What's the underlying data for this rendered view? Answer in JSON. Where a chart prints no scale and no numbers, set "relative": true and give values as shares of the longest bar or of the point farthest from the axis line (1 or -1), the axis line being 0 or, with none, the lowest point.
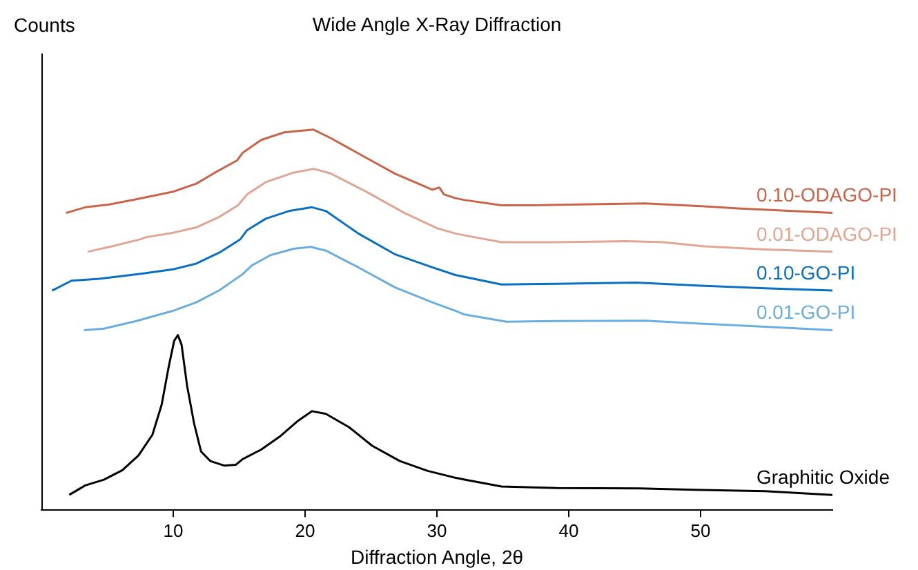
{
  "chart_data": {
    "type": "line",
    "title": "Wide Angle X-Ray Diffraction",
    "xlabel": "Diffraction Angle, 2θ",
    "ylabel": "Counts",
    "relative": true,
    "xlim": [
      0,
      60
    ],
    "xticks": [
      10,
      20,
      30,
      40,
      50
    ],
    "series": [
      {
        "name": "0.10-ODAGO-PI",
        "color": "#c8644a",
        "x": [
          1.86,
          3.33,
          5.09,
          7.19,
          10,
          11.75,
          13.16,
          14.84,
          15.26,
          16.67,
          18.42,
          20.63,
          21.93,
          24.74,
          26.84,
          29.65,
          30.18,
          30.53,
          31.4,
          32.1,
          34.9,
          37.3,
          41.6,
          45.8,
          50,
          52.8,
          60
        ],
        "values": [
          0.781,
          0.796,
          0.803,
          0.817,
          0.837,
          0.858,
          0.887,
          0.919,
          0.939,
          0.973,
          0.993,
          1,
          0.978,
          0.924,
          0.884,
          0.842,
          0.848,
          0.83,
          0.82,
          0.815,
          0.801,
          0.801,
          0.804,
          0.806,
          0.799,
          0.793,
          0.781
        ]
      },
      {
        "name": "0.01-ODAGO-PI",
        "color": "#e0a693",
        "x": [
          3.51,
          5.44,
          7.54,
          7.89,
          10,
          11.75,
          13.51,
          14.91,
          15.61,
          17.02,
          19.12,
          20.63,
          21.93,
          24.74,
          27.54,
          30,
          31.4,
          32.1,
          34.9,
          39.1,
          44.4,
          47.2,
          50,
          54.9,
          60
        ],
        "values": [
          0.679,
          0.694,
          0.712,
          0.717,
          0.729,
          0.743,
          0.771,
          0.801,
          0.83,
          0.862,
          0.887,
          0.897,
          0.885,
          0.835,
          0.781,
          0.741,
          0.727,
          0.722,
          0.704,
          0.704,
          0.707,
          0.704,
          0.694,
          0.685,
          0.679
        ]
      },
      {
        "name": "0.10-GO-PI",
        "color": "#0a6fc2",
        "x": [
          0.81,
          2.28,
          4.39,
          7.54,
          10,
          11.75,
          13.51,
          15.09,
          15.61,
          17.02,
          18.77,
          20.53,
          21.58,
          24.04,
          26.84,
          29.65,
          31.4,
          32.1,
          34.9,
          39.1,
          45.1,
          50,
          54.9,
          60
        ],
        "values": [
          0.577,
          0.603,
          0.608,
          0.621,
          0.633,
          0.648,
          0.677,
          0.712,
          0.736,
          0.766,
          0.786,
          0.796,
          0.786,
          0.727,
          0.672,
          0.638,
          0.618,
          0.613,
          0.593,
          0.595,
          0.598,
          0.59,
          0.583,
          0.577
        ]
      },
      {
        "name": "0.01-GO-PI",
        "color": "#6aaee0",
        "x": [
          3.23,
          4.74,
          7.19,
          10,
          11.75,
          13.51,
          15.26,
          15.96,
          17.37,
          19.12,
          20.42,
          21.58,
          24.04,
          26.84,
          29.65,
          31.4,
          32.1,
          35.3,
          39.1,
          45.8,
          50,
          54.9,
          60
        ],
        "values": [
          0.473,
          0.477,
          0.497,
          0.524,
          0.546,
          0.578,
          0.62,
          0.643,
          0.67,
          0.687,
          0.692,
          0.682,
          0.638,
          0.585,
          0.546,
          0.524,
          0.514,
          0.495,
          0.497,
          0.498,
          0.49,
          0.482,
          0.473
        ]
      },
      {
        "name": "Graphitic Oxide",
        "color": "#000000",
        "x": [
          2.11,
          3.33,
          4.74,
          6.14,
          7.37,
          8.42,
          9.12,
          9.65,
          10.07,
          10.35,
          10.63,
          11.05,
          11.58,
          12.11,
          12.81,
          13.86,
          14.74,
          15.26,
          16.67,
          18.07,
          19.47,
          20.53,
          21.58,
          23.33,
          25.09,
          27.19,
          29.3,
          31.4,
          32.1,
          34.9,
          39.1,
          45.4,
          50,
          54.9,
          60
        ],
        "values": [
          0.04,
          0.065,
          0.08,
          0.105,
          0.144,
          0.198,
          0.277,
          0.376,
          0.445,
          0.46,
          0.435,
          0.327,
          0.228,
          0.154,
          0.129,
          0.117,
          0.119,
          0.134,
          0.159,
          0.193,
          0.235,
          0.26,
          0.253,
          0.218,
          0.169,
          0.129,
          0.103,
          0.085,
          0.08,
          0.062,
          0.058,
          0.057,
          0.053,
          0.05,
          0.04
        ]
      }
    ]
  }
}
